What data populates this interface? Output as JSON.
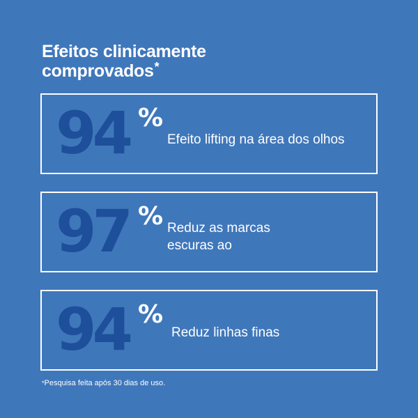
{
  "title": {
    "line1": "Efeitos clinicamente",
    "line2": "comprovados",
    "marker": "*"
  },
  "stats": [
    {
      "value": "94",
      "unit": "%",
      "label_lines": [
        "Efeito lifting na área dos olhos"
      ]
    },
    {
      "value": "97",
      "unit": "%",
      "label_lines": [
        "Reduz as marcas",
        "escuras ao"
      ]
    },
    {
      "value": "94",
      "unit": "%",
      "label_lines": [
        "Reduz linhas finas"
      ]
    }
  ],
  "footnote": {
    "marker": "*",
    "text": "Pesquisa feita após 30 dias de uso."
  },
  "colors": {
    "background": "#3f77bb",
    "number": "#1e4f9a",
    "text": "#ffffff"
  }
}
